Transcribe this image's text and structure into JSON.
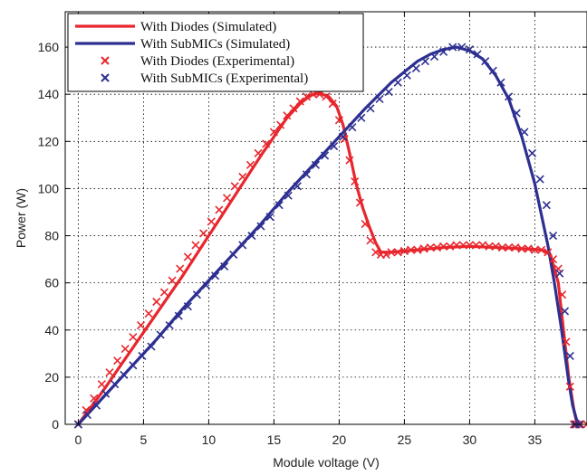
{
  "chart_data": {
    "type": "line",
    "title": "",
    "xlabel": "Module voltage (V)",
    "ylabel": "Power (W)",
    "xlim": [
      -1,
      39
    ],
    "ylim": [
      0,
      175
    ],
    "xticks": [
      0,
      5,
      10,
      15,
      20,
      25,
      30,
      35
    ],
    "yticks": [
      0,
      20,
      40,
      60,
      80,
      100,
      120,
      140,
      160
    ],
    "grid": true,
    "legend_position": "top-left",
    "series": [
      {
        "name": "With Diodes (Simulated)",
        "style": "line",
        "color": "#e8262d",
        "x": [
          0,
          2,
          4,
          6,
          8,
          10,
          12,
          14,
          15,
          16,
          17,
          17.8,
          18.5,
          19.2,
          19.8,
          20.3,
          20.8,
          21.3,
          21.8,
          22.3,
          22.8,
          23.2,
          24,
          26,
          28,
          30,
          32,
          34,
          35.5,
          36.2,
          36.8,
          37.2,
          37.6,
          38,
          38.2,
          38.4
        ],
        "y": [
          0,
          15,
          31,
          47,
          63,
          80,
          97,
          114,
          122,
          130,
          136,
          139.5,
          140.5,
          139,
          135,
          127,
          115,
          102,
          92,
          84,
          77,
          73,
          73,
          74,
          75,
          75.5,
          75,
          74.5,
          74,
          72,
          60,
          40,
          20,
          6,
          1,
          0
        ]
      },
      {
        "name": "With SubMICs (Simulated)",
        "style": "line",
        "color": "#2d2f91",
        "x": [
          0,
          2,
          4,
          6,
          8,
          10,
          12,
          14,
          16,
          18,
          20,
          22,
          24,
          26,
          27,
          28,
          29,
          30,
          31,
          32,
          33,
          34,
          35,
          36,
          36.5,
          37,
          37.3,
          37.6,
          37.9,
          38.2,
          38.5
        ],
        "y": [
          0,
          12,
          24,
          36,
          49,
          61,
          73,
          85,
          98,
          110,
          122,
          134,
          145,
          154,
          157,
          159,
          160,
          158.5,
          155,
          148,
          138,
          122,
          102,
          76,
          60,
          42,
          30,
          18,
          8,
          2,
          0
        ]
      },
      {
        "name": "With Diodes (Experimental)",
        "style": "markers",
        "color": "#e8262d",
        "x": [
          0,
          0.6,
          1.2,
          1.8,
          2.4,
          3,
          3.6,
          4.2,
          4.8,
          5.4,
          6,
          6.6,
          7.2,
          7.8,
          8.4,
          9,
          9.6,
          10.2,
          10.8,
          11.4,
          12,
          12.6,
          13.2,
          13.8,
          14.4,
          15,
          15.5,
          16,
          16.5,
          17,
          17.5,
          18,
          18.5,
          19,
          19.5,
          20,
          20.4,
          20.8,
          21.2,
          21.6,
          22,
          22.4,
          22.8,
          23.2,
          23.6,
          24,
          24.5,
          25,
          25.5,
          26,
          26.5,
          27,
          27.5,
          28,
          28.5,
          29,
          29.5,
          30,
          30.5,
          31,
          31.5,
          32,
          32.5,
          33,
          33.5,
          34,
          34.5,
          35,
          35.5,
          36,
          36.4,
          36.8,
          37.1,
          37.4,
          37.7,
          38,
          38.2,
          38.5,
          39
        ],
        "y": [
          0,
          6,
          11,
          17,
          22,
          27,
          32,
          37,
          42,
          47,
          52,
          56,
          61,
          66,
          71,
          76,
          81,
          86,
          91,
          96,
          101,
          105,
          110,
          115,
          119,
          124,
          127,
          131,
          134,
          137,
          139,
          140,
          140,
          139,
          136,
          129,
          121,
          112,
          103,
          94,
          85,
          78,
          73,
          72,
          72,
          73,
          73,
          73.5,
          74,
          74,
          74.5,
          75,
          75,
          75.5,
          75.5,
          76,
          76,
          76,
          76,
          76,
          75.5,
          75.5,
          75,
          75,
          75,
          74.5,
          74.5,
          74,
          74,
          73,
          70,
          66,
          55,
          35,
          16,
          0,
          0,
          0,
          0
        ]
      },
      {
        "name": "With SubMICs (Experimental)",
        "style": "markers",
        "color": "#2d2f91",
        "x": [
          0,
          0.7,
          1.4,
          2.1,
          2.8,
          3.5,
          4.2,
          4.9,
          5.6,
          6.3,
          7,
          7.7,
          8.4,
          9.1,
          9.8,
          10.5,
          11.2,
          11.9,
          12.6,
          13.3,
          14,
          14.7,
          15.4,
          16.1,
          16.8,
          17.5,
          18.2,
          18.9,
          19.6,
          20.3,
          21,
          21.7,
          22.4,
          23.1,
          23.8,
          24.5,
          25.2,
          25.9,
          26.6,
          27.3,
          28,
          28.7,
          29.4,
          30,
          30.6,
          31.2,
          31.8,
          32.4,
          33,
          33.6,
          34.2,
          34.8,
          35.4,
          35.9,
          36.4,
          36.9,
          37.3,
          37.7,
          38.1,
          38.4
        ],
        "y": [
          0,
          4,
          8,
          13,
          17,
          21,
          25,
          29,
          33,
          38,
          42,
          46,
          50,
          55,
          59,
          63,
          67,
          72,
          76,
          80,
          84,
          88,
          93,
          97,
          101,
          106,
          110,
          114,
          118,
          122,
          126,
          130,
          134,
          138,
          141,
          145,
          148,
          151,
          154,
          156,
          158,
          160,
          160,
          159,
          157,
          154,
          150,
          145,
          139,
          132,
          124,
          115,
          104,
          93,
          80,
          64,
          48,
          29,
          0,
          0
        ]
      }
    ]
  }
}
